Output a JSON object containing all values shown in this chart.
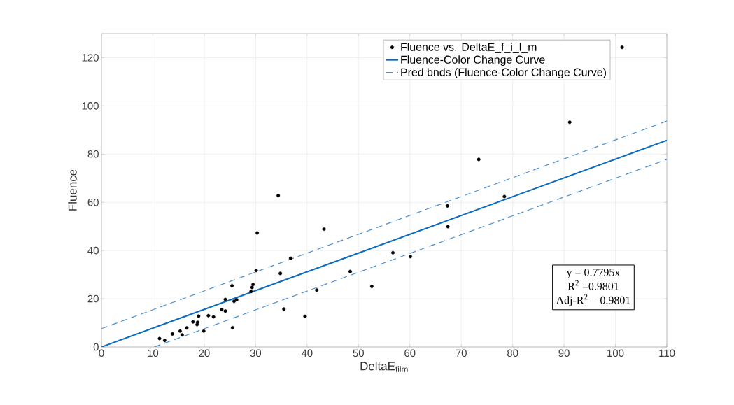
{
  "chart_data": {
    "type": "scatter",
    "xlabel": "DeltaE$_{film}$",
    "ylabel": "Fluence",
    "xlim": [
      0,
      110
    ],
    "ylim": [
      0,
      130
    ],
    "xticks": [
      0,
      10,
      20,
      30,
      40,
      50,
      60,
      70,
      80,
      90,
      100,
      110
    ],
    "yticks": [
      0,
      20,
      40,
      60,
      80,
      100,
      120
    ],
    "grid": true,
    "legend": "top right",
    "annotations": [
      "y = 0.7795x",
      "R$^{2}$ =0.9801",
      "Adj-R$^{2}$ = 0.9801"
    ],
    "series": [
      {
        "name": "Fluence vs. DeltaE_f_i_l_m",
        "marker": "circle",
        "color": "#000000",
        "x": [
          11.3,
          12.3,
          13.8,
          15.3,
          15.7,
          16.6,
          17.8,
          18.7,
          18.6,
          18.9,
          19.9,
          20.8,
          21.8,
          23.4,
          24.1,
          24.1,
          25.5,
          25.4,
          25.8,
          26.3,
          29.1,
          29.3,
          29.5,
          30.1,
          30.3,
          34.4,
          34.8,
          35.5,
          36.8,
          39.6,
          41.9,
          43.3,
          48.4,
          52.6,
          56.7,
          60.1,
          67.3,
          67.4,
          73.4,
          78.4,
          91.1,
          101.3
        ],
        "values": [
          3.5,
          2.7,
          5.4,
          6.6,
          5.0,
          7.9,
          10.4,
          10.2,
          9.3,
          12.8,
          6.6,
          13.0,
          12.5,
          15.5,
          14.9,
          19.7,
          8.0,
          25.4,
          18.9,
          19.6,
          23.0,
          24.7,
          25.9,
          31.7,
          47.3,
          62.8,
          30.5,
          15.7,
          36.8,
          12.7,
          23.6,
          48.9,
          31.3,
          25.1,
          39.1,
          37.5,
          58.5,
          49.9,
          77.8,
          62.4,
          93.2,
          124.3
        ]
      },
      {
        "name": "Fluence-Color Change Curve",
        "type": "line",
        "marker": "none",
        "line_style": "solid",
        "color": "#0b6bbf",
        "x": [
          0,
          110
        ],
        "values": [
          0,
          85.7
        ]
      },
      {
        "name": "Pred bnds (Fluence-Color Change Curve)",
        "type": "line",
        "marker": "none",
        "line_style": "dashed",
        "color": "#4a8fd0",
        "x": [
          0,
          110
        ],
        "values": [
          7.6,
          93.7
        ]
      },
      {
        "type": "line",
        "marker": "none",
        "line_style": "dashed",
        "color": "#4a8fd0",
        "x": [
          10.3,
          110
        ],
        "values": [
          0,
          77.8
        ]
      }
    ]
  }
}
